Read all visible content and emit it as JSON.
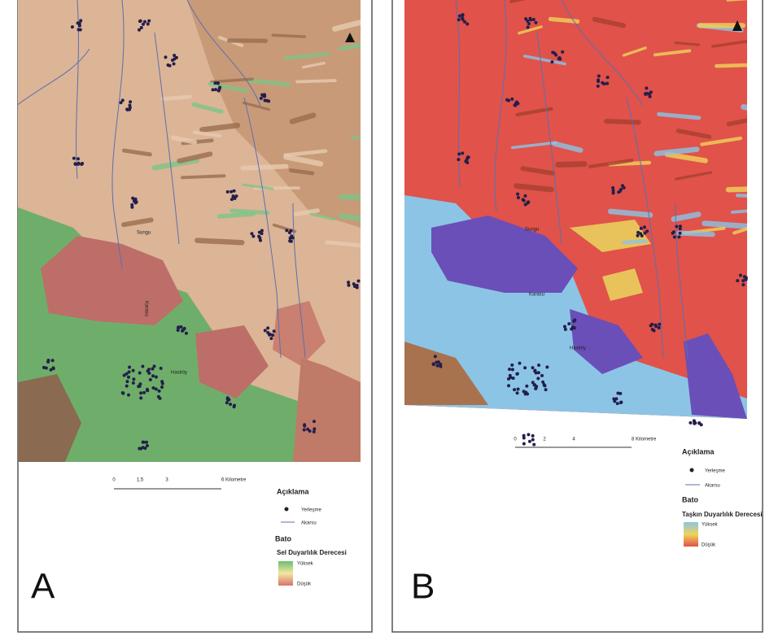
{
  "panel_a": {
    "label": "A",
    "map_labels": [
      "Sungu",
      "Karasu",
      "Hasköy"
    ],
    "scale": [
      "0",
      "1,5",
      "3",
      "6 Kilometre"
    ],
    "legend": {
      "title": "Açıklama",
      "items": [
        "Yerleşme",
        "Akarsu"
      ],
      "section": "Bato",
      "ramp_title": "Sel Duyarlılık Derecesi",
      "high": "Yüksek",
      "low": "Düşük"
    }
  },
  "panel_b": {
    "label": "B",
    "map_labels": [
      "Sungu",
      "Karasu",
      "Hasköy"
    ],
    "scale": [
      "0",
      "2",
      "4",
      "8 Kilometre"
    ],
    "legend": {
      "title": "Açıklama",
      "items": [
        "Yerleşme",
        "Akarsu"
      ],
      "section": "Bato",
      "ramp_title": "Taşkın Duyarlılık Derecesi",
      "high": "Yüksek",
      "low": "Düşük"
    }
  }
}
